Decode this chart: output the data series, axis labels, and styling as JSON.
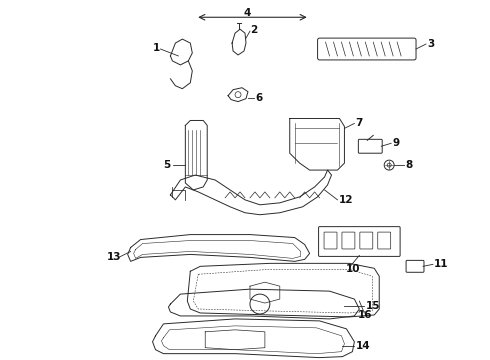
{
  "background_color": "#ffffff",
  "fig_width": 4.9,
  "fig_height": 3.6,
  "dpi": 100,
  "line_color": "#2a2a2a",
  "text_color": "#111111",
  "label_fontsize": 7.5
}
